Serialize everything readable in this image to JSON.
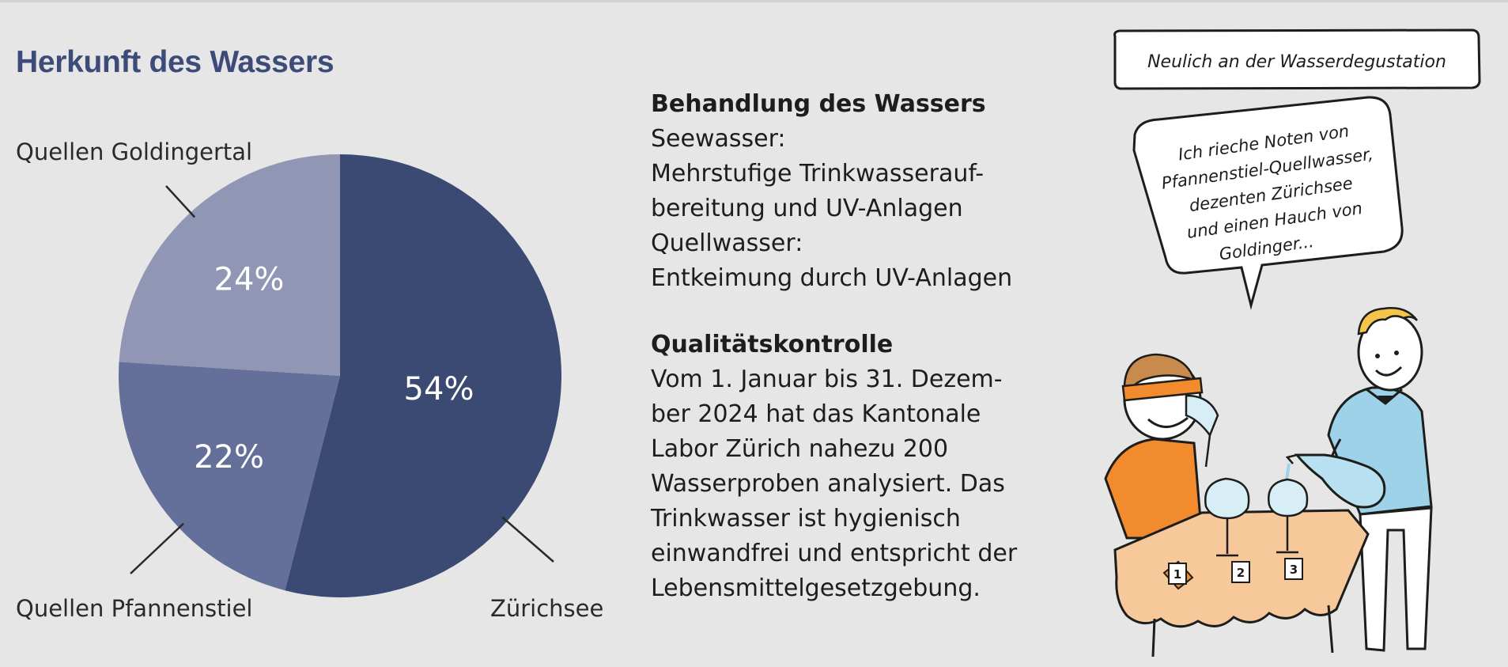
{
  "chart_data": {
    "type": "pie",
    "title": "Herkunft des Wassers",
    "slices": [
      {
        "label": "Zürichsee",
        "value": 54,
        "value_label": "54%",
        "color": "#3b4a72"
      },
      {
        "label": "Quellen Pfannenstiel",
        "value": 22,
        "value_label": "22%",
        "color": "#65709a"
      },
      {
        "label": "Quellen Goldingertal",
        "value": 24,
        "value_label": "24%",
        "color": "#9096b4"
      }
    ]
  },
  "treatment": {
    "heading": "Behandlung des Wassers",
    "lines": [
      "Seewasser:",
      "Mehrstufige Trinkwasserauf-",
      "bereitung und UV-Anlagen",
      "Quellwasser:",
      "Entkeimung durch UV-Anlagen"
    ]
  },
  "quality": {
    "heading": "Qualitätskontrolle",
    "lines": [
      "Vom 1. Januar bis 31. Dezem-",
      "ber 2024 hat das Kantonale",
      "Labor Zürich nahezu 200",
      "Wasserproben analysiert. Das",
      "Trinkwasser ist hygienisch",
      "einwandfrei und entspricht der",
      "Lebensmittelgesetzgebung."
    ]
  },
  "cartoon": {
    "caption": "Neulich an der Wasserdegustation",
    "speech_lines": [
      "Ich rieche Noten von",
      "Pfannenstiel-Quellwasser,",
      "dezenten Zürichsee",
      "und einen Hauch von",
      "Goldinger..."
    ],
    "cards": [
      "1",
      "2",
      "3"
    ]
  },
  "colors": {
    "title": "#3d4b78",
    "background": "#e6e6e7"
  }
}
